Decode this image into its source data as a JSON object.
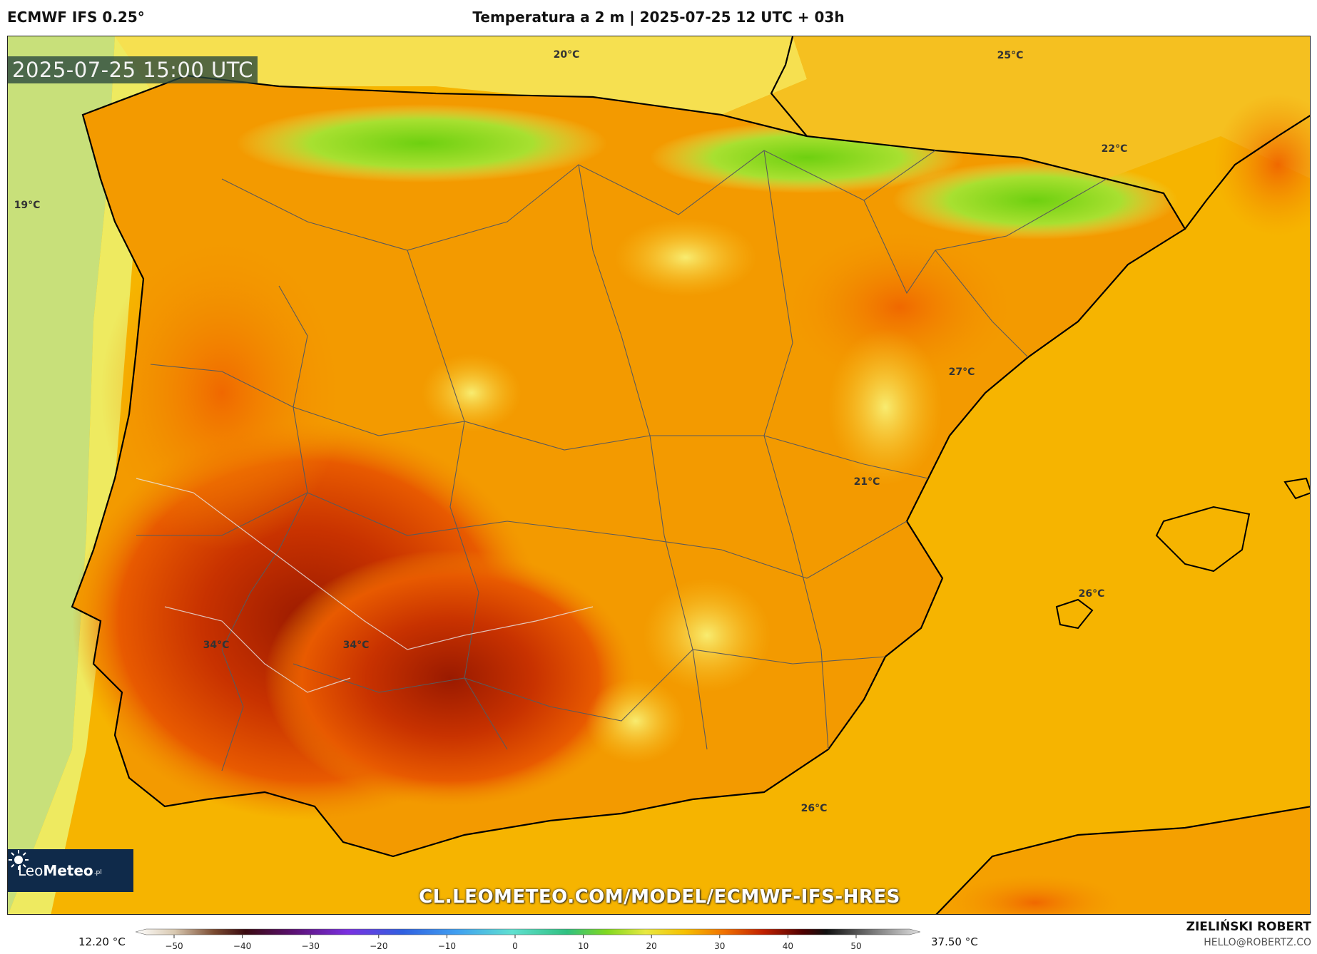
{
  "header": {
    "model": "ECMWF IFS 0.25°",
    "title": "Temperatura a 2 m | 2025-07-25 12 UTC + 03h"
  },
  "map": {
    "valid_time": "2025-07-25 15:00 UTC",
    "watermark": "CL.LEOMETEO.COM/MODEL/ECMWF-IFS-HRES",
    "logo": {
      "name": "LeoMeteo",
      "name_light": "Leo",
      "name_bold": "Meteo",
      "suffix": ".pl"
    },
    "labels": [
      {
        "text": "20°C"
      },
      {
        "text": "25°C"
      },
      {
        "text": "19°C"
      },
      {
        "text": "22°C"
      },
      {
        "text": "27°C"
      },
      {
        "text": "21°C"
      },
      {
        "text": "26°C"
      },
      {
        "text": "34°C"
      },
      {
        "text": "34°C"
      },
      {
        "text": "26°C"
      }
    ],
    "colors": {
      "sea_cool": "#c8e07a",
      "warm": "#f6b400",
      "hot": "#f07800",
      "very_hot": "#d84000",
      "extreme": "#9a1a00",
      "green": "#88d820",
      "light": "#f5e05a"
    }
  },
  "scale": {
    "min_label": "12.20 °C",
    "max_label": "37.50 °C",
    "ticks": [
      "−50",
      "−40",
      "−30",
      "−20",
      "−10",
      "0",
      "10",
      "20",
      "30",
      "40",
      "50"
    ]
  },
  "author": {
    "name": "ZIELIŃSKI ROBERT",
    "email": "HELLO@ROBERTZ.CO"
  }
}
